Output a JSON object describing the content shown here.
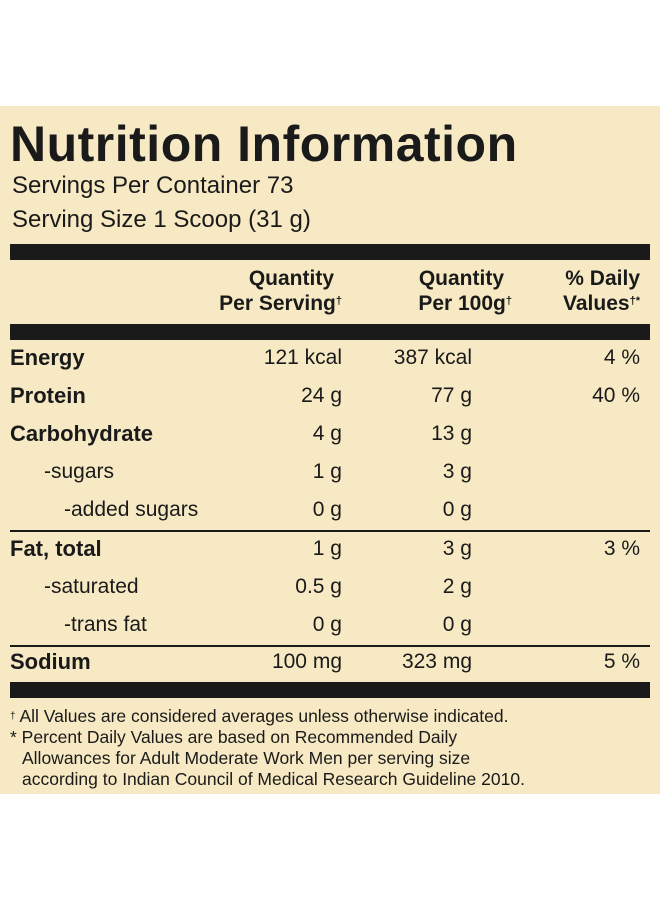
{
  "title": "Nutrition Information",
  "servings_per_container": "Servings Per Container 73",
  "serving_size": "Serving Size 1 Scoop (31 g)",
  "headers": {
    "col1_line1": "Quantity",
    "col1_line2": "Per Serving",
    "col2_line1": "Quantity",
    "col2_line2": "Per 100g",
    "col3_line1": "% Daily",
    "col3_line2": "Values",
    "dagger": "†",
    "dagger_star": "†*"
  },
  "rows": [
    {
      "label": "Energy",
      "per_serving": "121 kcal",
      "per_100g": "387 kcal",
      "dv": "4 %"
    },
    {
      "label": "Protein",
      "per_serving": "24 g",
      "per_100g": "77 g",
      "dv": "40 %"
    },
    {
      "label": "Carbohydrate",
      "per_serving": "4 g",
      "per_100g": "13 g",
      "dv": ""
    },
    {
      "label": "-sugars",
      "per_serving": "1 g",
      "per_100g": "3 g",
      "dv": ""
    },
    {
      "label": "-added sugars",
      "per_serving": "0 g",
      "per_100g": "0 g",
      "dv": ""
    },
    {
      "label": "Fat, total",
      "per_serving": "1 g",
      "per_100g": "3 g",
      "dv": "3 %"
    },
    {
      "label": "-saturated",
      "per_serving": "0.5 g",
      "per_100g": "2 g",
      "dv": ""
    },
    {
      "label": "-trans fat",
      "per_serving": "0 g",
      "per_100g": "0 g",
      "dv": ""
    },
    {
      "label": "Sodium",
      "per_serving": "100 mg",
      "per_100g": "323 mg",
      "dv": "5 %"
    }
  ],
  "footnotes": {
    "dagger_mark": "†",
    "line1": "All Values are considered averages unless otherwise indicated.",
    "line2": "* Percent Daily Values are based on Recommended Daily",
    "line3": "Allowances for Adult Moderate Work Men per serving size",
    "line4": "according to Indian Council of Medical Research Guideline 2010."
  },
  "colors": {
    "panel_background": "#f6e9c3",
    "ink": "#1a1a1a"
  }
}
